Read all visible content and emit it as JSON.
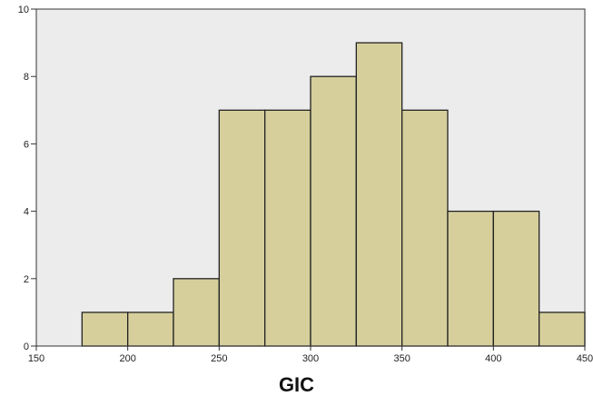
{
  "chart_data": {
    "type": "bar",
    "title": "",
    "xlabel": "GIC",
    "ylabel": "",
    "bins": [
      {
        "from": 175,
        "to": 200,
        "count": 1
      },
      {
        "from": 200,
        "to": 225,
        "count": 1
      },
      {
        "from": 225,
        "to": 250,
        "count": 2
      },
      {
        "from": 250,
        "to": 275,
        "count": 7
      },
      {
        "from": 275,
        "to": 300,
        "count": 7
      },
      {
        "from": 300,
        "to": 325,
        "count": 8
      },
      {
        "from": 325,
        "to": 350,
        "count": 9
      },
      {
        "from": 350,
        "to": 375,
        "count": 7
      },
      {
        "from": 375,
        "to": 400,
        "count": 4
      },
      {
        "from": 400,
        "to": 425,
        "count": 4
      },
      {
        "from": 425,
        "to": 450,
        "count": 1
      }
    ],
    "xlim": [
      150,
      450
    ],
    "ylim": [
      0,
      10
    ],
    "x_ticks": [
      150,
      200,
      250,
      300,
      350,
      400,
      450
    ],
    "y_ticks": [
      0,
      2,
      4,
      6,
      8,
      10
    ],
    "grid": false,
    "colors": {
      "plot_background": "#ececec",
      "bar_fill": "#d6cf9c",
      "bar_stroke": "#222222"
    }
  }
}
